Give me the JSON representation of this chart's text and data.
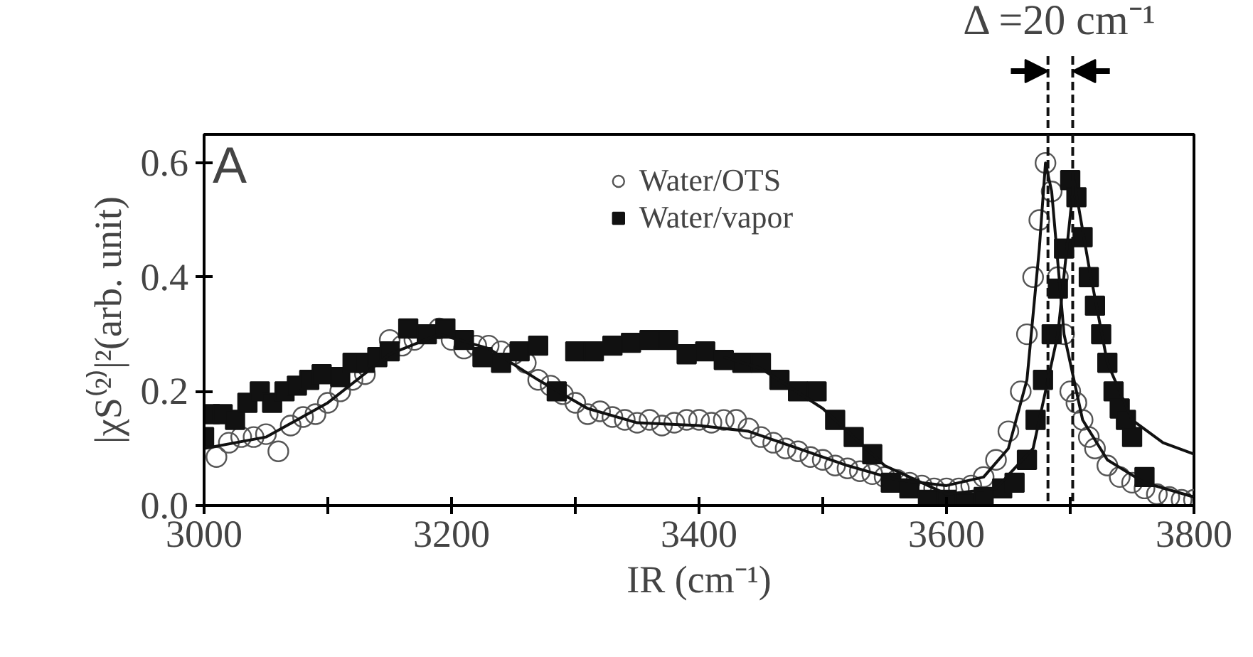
{
  "chart_data": {
    "type": "scatter",
    "xlabel": "IR (cm⁻¹)",
    "ylabel": "|χS⁽²⁾|²(arb. unit)",
    "xlim": [
      3000,
      3800
    ],
    "xticks": [
      3000,
      {
        "value": 3100,
        "label": null
      },
      3200,
      {
        "value": 3300,
        "label": null
      },
      3400,
      {
        "value": 3500,
        "label": null
      },
      3600,
      {
        "value": 3700,
        "label": null
      },
      3800
    ],
    "ylim": [
      0,
      0.65
    ],
    "yticks": [
      {
        "value": 0,
        "label": "0.0"
      },
      0.2,
      0.4,
      0.6
    ],
    "grid": false,
    "legend": "top",
    "series": [
      {
        "name": "Water/OTS",
        "marker": "circle",
        "color": "#555555",
        "x": [
          3010,
          3020,
          3030,
          3040,
          3050,
          3060,
          3070,
          3080,
          3090,
          3100,
          3110,
          3120,
          3130,
          3150,
          3160,
          3170,
          3190,
          3200,
          3210,
          3220,
          3230,
          3240,
          3250,
          3260,
          3270,
          3280,
          3290,
          3300,
          3310,
          3320,
          3330,
          3340,
          3350,
          3360,
          3370,
          3380,
          3390,
          3400,
          3410,
          3420,
          3430,
          3440,
          3450,
          3460,
          3470,
          3480,
          3490,
          3500,
          3510,
          3520,
          3530,
          3540,
          3550,
          3560,
          3570,
          3580,
          3590,
          3600,
          3610,
          3620,
          3630,
          3640,
          3650,
          3660,
          3665,
          3670,
          3675,
          3680,
          3685,
          3690,
          3695,
          3700,
          3705,
          3710,
          3715,
          3720,
          3730,
          3740,
          3750,
          3760,
          3770,
          3780,
          3790,
          3800
        ],
        "values": [
          0.085,
          0.11,
          0.12,
          0.12,
          0.125,
          0.095,
          0.14,
          0.155,
          0.16,
          0.18,
          0.2,
          0.22,
          0.23,
          0.29,
          0.28,
          0.29,
          0.31,
          0.29,
          0.275,
          0.28,
          0.28,
          0.27,
          0.265,
          0.25,
          0.22,
          0.21,
          0.195,
          0.18,
          0.16,
          0.165,
          0.155,
          0.15,
          0.145,
          0.15,
          0.14,
          0.145,
          0.15,
          0.15,
          0.145,
          0.15,
          0.15,
          0.135,
          0.12,
          0.11,
          0.1,
          0.095,
          0.085,
          0.08,
          0.07,
          0.065,
          0.06,
          0.055,
          0.05,
          0.045,
          0.04,
          0.035,
          0.03,
          0.03,
          0.03,
          0.035,
          0.05,
          0.08,
          0.13,
          0.2,
          0.3,
          0.4,
          0.5,
          0.6,
          0.55,
          0.4,
          0.3,
          0.2,
          0.18,
          0.15,
          0.12,
          0.1,
          0.07,
          0.05,
          0.04,
          0.03,
          0.02,
          0.015,
          0.01,
          0.01
        ]
      },
      {
        "name": "Water/vapor",
        "marker": "square",
        "color": "#111111",
        "x": [
          3000,
          3005,
          3015,
          3025,
          3035,
          3045,
          3055,
          3065,
          3075,
          3085,
          3095,
          3110,
          3120,
          3130,
          3140,
          3150,
          3165,
          3180,
          3195,
          3210,
          3225,
          3240,
          3255,
          3270,
          3285,
          3300,
          3315,
          3330,
          3345,
          3360,
          3375,
          3390,
          3405,
          3420,
          3435,
          3450,
          3465,
          3480,
          3495,
          3510,
          3525,
          3540,
          3555,
          3570,
          3585,
          3600,
          3615,
          3630,
          3645,
          3655,
          3665,
          3672,
          3678,
          3685,
          3690,
          3695,
          3700,
          3705,
          3710,
          3715,
          3720,
          3725,
          3730,
          3735,
          3740,
          3745,
          3750,
          3760
        ],
        "values": [
          0.12,
          0.16,
          0.16,
          0.15,
          0.18,
          0.2,
          0.18,
          0.2,
          0.21,
          0.22,
          0.23,
          0.225,
          0.25,
          0.25,
          0.26,
          0.27,
          0.31,
          0.3,
          0.31,
          0.29,
          0.26,
          0.25,
          0.27,
          0.28,
          0.2,
          0.27,
          0.27,
          0.28,
          0.285,
          0.29,
          0.29,
          0.265,
          0.27,
          0.255,
          0.25,
          0.25,
          0.22,
          0.2,
          0.2,
          0.15,
          0.12,
          0.09,
          0.04,
          0.03,
          0.01,
          0.01,
          0.005,
          0.015,
          0.03,
          0.04,
          0.08,
          0.15,
          0.22,
          0.3,
          0.38,
          0.45,
          0.57,
          0.54,
          0.47,
          0.4,
          0.35,
          0.3,
          0.25,
          0.2,
          0.17,
          0.15,
          0.12,
          0.05
        ]
      },
      {
        "type": "line",
        "color": "#111111",
        "x": [
          3000,
          3050,
          3100,
          3150,
          3190,
          3230,
          3270,
          3310,
          3350,
          3400,
          3440,
          3480,
          3520,
          3560,
          3600,
          3630,
          3650,
          3665,
          3675,
          3680,
          3685,
          3695,
          3710,
          3730,
          3760,
          3800
        ],
        "values": [
          0.1,
          0.12,
          0.18,
          0.265,
          0.3,
          0.275,
          0.22,
          0.17,
          0.145,
          0.14,
          0.13,
          0.1,
          0.07,
          0.045,
          0.035,
          0.05,
          0.1,
          0.22,
          0.45,
          0.6,
          0.55,
          0.3,
          0.15,
          0.08,
          0.04,
          0.015
        ]
      },
      {
        "type": "line",
        "color": "#111111",
        "x": [
          3420,
          3450,
          3500,
          3550,
          3600,
          3640,
          3670,
          3690,
          3703,
          3715,
          3730,
          3750,
          3775,
          3800
        ],
        "values": [
          0.26,
          0.24,
          0.17,
          0.07,
          0.02,
          0.03,
          0.1,
          0.3,
          0.57,
          0.42,
          0.25,
          0.15,
          0.11,
          0.09
        ]
      }
    ],
    "ref_lines": [
      {
        "axis": "x",
        "value": 3682,
        "line_style": "dashed",
        "color": "#111111"
      },
      {
        "axis": "x",
        "value": 3702,
        "line_style": "dashed",
        "color": "#111111"
      }
    ],
    "annotations": [
      "A",
      "Δ =20 cm⁻¹"
    ]
  }
}
